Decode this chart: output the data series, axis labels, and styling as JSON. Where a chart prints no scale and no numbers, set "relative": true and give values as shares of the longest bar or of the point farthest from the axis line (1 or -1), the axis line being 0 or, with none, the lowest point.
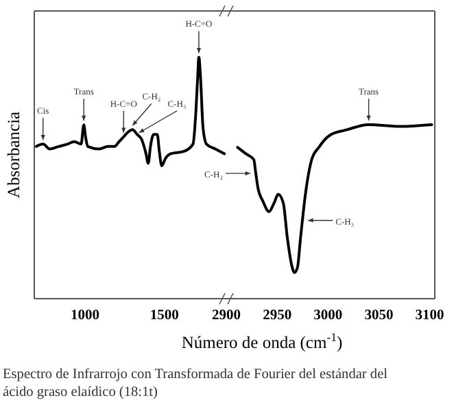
{
  "chart_data": [
    {
      "type": "line",
      "relative": true,
      "ylabel": "Absorbancia",
      "xlim": [
        680,
        1890
      ],
      "xticks": [
        1000,
        1500
      ],
      "tick_labels": "x",
      "color": "#000000",
      "x": [
        693,
        735,
        777,
        833,
        890,
        932,
        975,
        992,
        1003,
        1017,
        1088,
        1144,
        1186,
        1214,
        1243,
        1271,
        1299,
        1328,
        1356,
        1384,
        1398,
        1412,
        1432,
        1455,
        1468,
        1483,
        1506,
        1540,
        1624,
        1680,
        1697,
        1709,
        1717,
        1728,
        1743,
        1765,
        1821,
        1878
      ],
      "values": [
        0.63,
        0.64,
        0.62,
        0.63,
        0.64,
        0.65,
        0.64,
        0.72,
        0.67,
        0.63,
        0.62,
        0.63,
        0.63,
        0.65,
        0.67,
        0.69,
        0.7,
        0.68,
        0.66,
        0.6,
        0.56,
        0.63,
        0.68,
        0.68,
        0.61,
        0.55,
        0.58,
        0.6,
        0.61,
        0.64,
        0.76,
        0.91,
        1,
        0.91,
        0.71,
        0.64,
        0.62,
        0.6
      ],
      "annotations": [
        {
          "text": "Cis",
          "x": 735,
          "y": 0.64
        },
        {
          "text": "Trans",
          "x": 992,
          "y": 0.72
        },
        {
          "text": "H-C=O",
          "x": 1243,
          "y": 0.67
        },
        {
          "text": "C-H₂",
          "x": 1299,
          "y": 0.7
        },
        {
          "text": "C-H₃",
          "x": 1340,
          "y": 0.67
        },
        {
          "text": "H-C=O",
          "x": 1717,
          "y": 1
        }
      ]
    },
    {
      "type": "line",
      "relative": true,
      "xlabel": "Número de onda (cm$^{-1}$)",
      "xlim": [
        2900,
        3105
      ],
      "xticks": [
        2900,
        2950,
        3000,
        3050,
        3100
      ],
      "tick_labels": "x",
      "color": "#000000",
      "x": [
        2911,
        2920,
        2927,
        2929,
        2931,
        2936,
        2942,
        2947,
        2951,
        2956,
        2960,
        2964,
        2967,
        2970,
        2973,
        2978,
        2984,
        2991,
        3002,
        3018,
        3040,
        3071,
        3102
      ],
      "values": [
        0.87,
        0.83,
        0.8,
        0.72,
        0.64,
        0.56,
        0.5,
        0.55,
        0.6,
        0.55,
        0.35,
        0.2,
        0.15,
        0.18,
        0.35,
        0.61,
        0.8,
        0.87,
        0.94,
        0.97,
        1,
        0.99,
        1
      ],
      "annotations": [
        {
          "text": "C-H₂",
          "x": 2929,
          "y": 0.72
        },
        {
          "text": "C-H₃",
          "x": 2975,
          "y": 0.45
        },
        {
          "text": "Trans",
          "x": 3040,
          "y": 1
        },
        "Espectro de Infrarrojo con Transformada de Fourier del estándar del ácido graso elaídico (18:1t)"
      ]
    }
  ]
}
